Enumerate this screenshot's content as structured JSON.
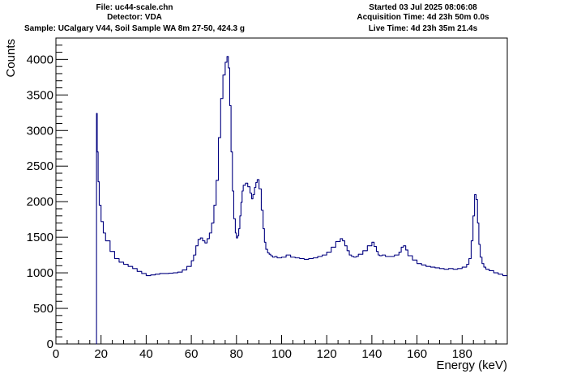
{
  "header": {
    "file": "File: uc44-scale.chn",
    "detector": "Detector: VDA",
    "sample": "Sample: UCalgary V44, Soil Sample WA 8m 27-50, 424.3 g",
    "started": "Started 03 Jul 2025 08:06:08",
    "acquisition_time": "Acquisition Time: 4d 23h 50m 0.0s",
    "live_time": "Live Time: 4d 23h 35m 21.4s"
  },
  "chart_data": {
    "type": "line",
    "title": "",
    "xlabel": "Energy (keV)",
    "ylabel": "Counts",
    "xlim": [
      0,
      200
    ],
    "ylim": [
      0,
      4300
    ],
    "x_ticks": [
      0,
      20,
      40,
      60,
      80,
      100,
      120,
      140,
      160,
      180
    ],
    "y_ticks": [
      0,
      500,
      1000,
      1500,
      2000,
      2500,
      3000,
      3500,
      4000
    ],
    "line_color": "#00007f",
    "grid": false,
    "series": [
      {
        "name": "",
        "x": [
          17.9,
          18.0,
          18.3,
          18.7,
          19.2,
          20,
          21,
          22,
          24,
          26,
          28,
          30,
          32,
          34,
          36,
          38,
          40,
          42,
          44,
          46,
          48,
          50,
          52,
          54,
          56,
          58,
          60,
          61,
          62,
          63,
          64,
          65,
          66,
          67,
          68,
          69,
          70,
          71,
          72,
          73,
          74,
          75,
          75.8,
          76.4,
          77,
          77.6,
          78.2,
          78.8,
          79.5,
          80,
          80.5,
          81,
          81.5,
          82,
          82.5,
          83,
          84,
          85,
          86,
          86.7,
          87.3,
          88,
          88.6,
          89.2,
          90,
          91,
          91.8,
          92.4,
          93,
          93.8,
          94.5,
          95.2,
          96,
          97,
          98,
          100,
          102,
          104,
          106,
          108,
          110,
          112,
          114,
          116,
          118,
          120,
          122,
          124,
          126,
          127,
          128,
          129,
          130,
          131,
          132,
          133,
          134,
          136,
          138,
          140,
          141,
          142,
          142.8,
          143.5,
          144.5,
          146,
          148,
          150,
          152,
          153,
          154,
          155,
          156,
          158,
          160,
          162,
          164,
          166,
          168,
          170,
          172,
          174,
          176,
          178,
          180,
          182,
          183,
          184,
          184.8,
          185.5,
          186.2,
          186.8,
          187.4,
          188,
          188.8,
          189.6,
          190.5,
          192,
          194,
          196,
          198,
          200
        ],
        "y": [
          0,
          3240,
          2700,
          2280,
          1950,
          1720,
          1560,
          1450,
          1300,
          1200,
          1150,
          1120,
          1090,
          1060,
          1020,
          990,
          960,
          970,
          980,
          990,
          990,
          995,
          1000,
          1010,
          1040,
          1090,
          1170,
          1250,
          1380,
          1470,
          1490,
          1450,
          1420,
          1480,
          1560,
          1700,
          1950,
          2300,
          2900,
          3450,
          3780,
          3960,
          4040,
          3880,
          3350,
          2700,
          2150,
          1760,
          1560,
          1490,
          1520,
          1620,
          1800,
          1990,
          2150,
          2230,
          2260,
          2210,
          2120,
          2040,
          2100,
          2200,
          2270,
          2310,
          2180,
          1880,
          1620,
          1430,
          1330,
          1280,
          1260,
          1240,
          1220,
          1230,
          1210,
          1220,
          1250,
          1220,
          1210,
          1200,
          1190,
          1200,
          1210,
          1230,
          1250,
          1290,
          1360,
          1440,
          1480,
          1450,
          1380,
          1310,
          1250,
          1230,
          1220,
          1230,
          1260,
          1310,
          1380,
          1430,
          1370,
          1300,
          1250,
          1240,
          1250,
          1230,
          1230,
          1250,
          1290,
          1360,
          1380,
          1320,
          1240,
          1180,
          1130,
          1110,
          1090,
          1080,
          1070,
          1060,
          1050,
          1060,
          1050,
          1060,
          1080,
          1120,
          1200,
          1450,
          1800,
          2100,
          2030,
          1700,
          1400,
          1220,
          1130,
          1080,
          1050,
          1030,
          1000,
          980,
          960,
          960
        ]
      }
    ]
  }
}
